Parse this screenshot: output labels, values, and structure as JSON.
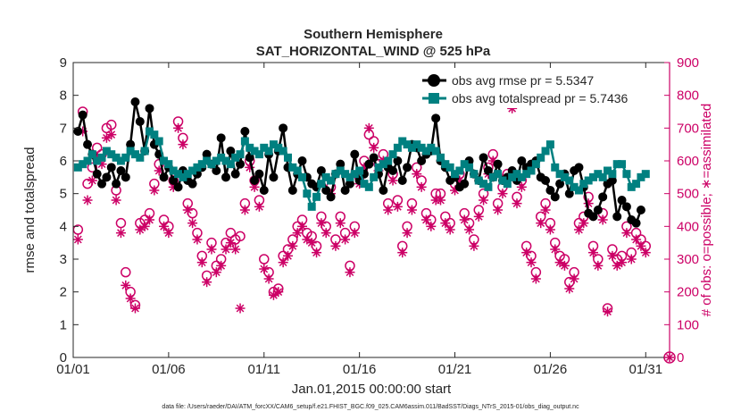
{
  "chart_data": {
    "type": "line",
    "title": "Southern Hemisphere",
    "subtitle": "SAT_HORIZONTAL_WIND @ 525 hPa",
    "xlabel": "Jan.01,2015 00:00:00 start",
    "ylabel": "rmse and totalspread",
    "ylabel_right": "# of obs: o=possible; ∗=assimilated",
    "x_tick_labels": [
      "01/01",
      "01/06",
      "01/11",
      "01/16",
      "01/21",
      "01/26",
      "01/31"
    ],
    "x_tick_days": [
      0,
      5,
      10,
      15,
      20,
      25,
      30
    ],
    "xlim_days": [
      0,
      31.25
    ],
    "ylim": [
      0,
      9
    ],
    "ylim_right": [
      0,
      900
    ],
    "y_ticks": [
      0,
      1,
      2,
      3,
      4,
      5,
      6,
      7,
      8,
      9
    ],
    "y_ticks_right": [
      0,
      100,
      200,
      300,
      400,
      500,
      600,
      700,
      800,
      900
    ],
    "grid": false,
    "legend_position": "top-right",
    "footer": "data file: /Users/raeder/DAI/ATM_forcXX/CAM6_setup/f.e21.FHIST_BGC.f09_025.CAM6assim.011/BadSST/Diags_NTrS_2015-01/obs_diag_output.nc",
    "colors": {
      "rmse": "#000000",
      "spread": "#008080",
      "obs": "#cc0066",
      "axes": "#262626"
    },
    "series": [
      {
        "name": "obs avg rmse pr = 5.5347",
        "axis": "left",
        "values": [
          6.9,
          7.4,
          6.5,
          6.2,
          5.6,
          5.3,
          5.5,
          5.8,
          5.3,
          5.7,
          5.5,
          6.5,
          7.8,
          7.2,
          6.3,
          7.6,
          6.5,
          6.2,
          5.5,
          5.8,
          5.4,
          5.2,
          5.7,
          5.4,
          5.3,
          5.6,
          5.8,
          6.2,
          5.9,
          5.7,
          6.7,
          5.5,
          6.3,
          5.6,
          5.9,
          6.9,
          6.1,
          5.4,
          5.6,
          5.1,
          6.2,
          5.5,
          6.3,
          7.0,
          5.8,
          5.1,
          5.6,
          6.0,
          5.5,
          5.3,
          5.2,
          5.7,
          5.1,
          4.9,
          5.6,
          5.9,
          5.1,
          5.3,
          6.2,
          5.4,
          5.6,
          5.9,
          6.1,
          5.6,
          5.1,
          5.8,
          5.7,
          6.0,
          5.4,
          5.8,
          6.5,
          6.4,
          6.0,
          6.2,
          6.3,
          7.3,
          6.0,
          5.8,
          5.4,
          5.5,
          5.2,
          5.3,
          6.0,
          5.6,
          5.4,
          6.1,
          5.7,
          5.5,
          5.9,
          5.4,
          5.5,
          5.7,
          5.4,
          6.0,
          5.8,
          5.9,
          6.0,
          5.5,
          5.4,
          5.1,
          4.9,
          5.3,
          5.6,
          5.0,
          5.7,
          5.8,
          5.2,
          4.4,
          4.3,
          4.5,
          4.9,
          5.3,
          5.4,
          4.3,
          4.8,
          4.6,
          4.2,
          4.1,
          4.5
        ],
        "marker": "filled-circle"
      },
      {
        "name": "obs avg totalspread pr = 5.7436",
        "axis": "left",
        "values": [
          5.8,
          5.9,
          6.0,
          6.2,
          6.0,
          6.1,
          6.3,
          6.2,
          6.1,
          6.0,
          6.1,
          6.3,
          6.2,
          6.1,
          6.3,
          6.9,
          6.8,
          6.6,
          6.0,
          5.9,
          5.7,
          5.6,
          5.5,
          5.6,
          5.7,
          5.8,
          5.9,
          6.0,
          5.9,
          6.0,
          6.1,
          6.0,
          5.9,
          6.1,
          6.2,
          6.6,
          6.4,
          6.3,
          6.2,
          6.4,
          6.3,
          6.5,
          6.4,
          6.3,
          6.1,
          5.8,
          5.7,
          5.5,
          5.0,
          4.6,
          4.9,
          5.3,
          5.5,
          5.4,
          5.6,
          5.7,
          5.6,
          5.5,
          5.6,
          5.7,
          5.3,
          5.2,
          5.5,
          5.8,
          5.9,
          6.0,
          6.2,
          6.4,
          6.6,
          6.5,
          6.4,
          6.5,
          6.4,
          6.3,
          6.4,
          6.3,
          6.1,
          5.9,
          5.8,
          5.6,
          5.7,
          5.9,
          5.8,
          5.6,
          5.4,
          5.3,
          5.2,
          5.5,
          5.6,
          5.4,
          5.3,
          5.5,
          5.6,
          5.5,
          5.6,
          5.7,
          5.9,
          6.1,
          6.3,
          6.5,
          5.8,
          5.6,
          5.5,
          5.4,
          5.2,
          5.1,
          5.3,
          5.4,
          5.5,
          5.6,
          5.5,
          5.7,
          5.6,
          5.9,
          5.9,
          5.6,
          5.2,
          5.3,
          5.5,
          5.6
        ],
        "marker": "filled-square"
      },
      {
        "name": "obs possible",
        "axis": "right",
        "values": [
          390,
          750,
          530,
          580,
          640,
          620,
          700,
          710,
          510,
          410,
          260,
          200,
          160,
          410,
          420,
          440,
          530,
          590,
          420,
          400,
          540,
          720,
          670,
          470,
          440,
          380,
          310,
          250,
          350,
          280,
          300,
          350,
          380,
          360,
          370,
          470,
          600,
          540,
          480,
          300,
          260,
          200,
          210,
          310,
          330,
          360,
          400,
          420,
          380,
          370,
          340,
          430,
          400,
          520,
          360,
          430,
          380,
          280,
          400,
          550,
          600,
          680,
          660,
          590,
          620,
          470,
          560,
          480,
          340,
          400,
          470,
          580,
          540,
          440,
          420,
          500,
          500,
          430,
          410,
          530,
          560,
          440,
          410,
          360,
          450,
          500,
          580,
          620,
          470,
          520,
          560,
          780,
          490,
          540,
          340,
          310,
          260,
          430,
          470,
          410,
          350,
          310,
          300,
          230,
          260,
          410,
          430,
          490,
          340,
          300,
          440,
          150,
          330,
          300,
          310,
          400,
          320,
          380,
          360,
          340
        ],
        "marker": "open-circle"
      },
      {
        "name": "obs assimilated",
        "axis": "right",
        "values": [
          360,
          690,
          480,
          540,
          610,
          590,
          670,
          680,
          480,
          380,
          220,
          180,
          150,
          390,
          400,
          420,
          510,
          570,
          400,
          380,
          520,
          700,
          650,
          450,
          410,
          360,
          290,
          230,
          330,
          260,
          280,
          330,
          350,
          330,
          150,
          450,
          580,
          520,
          460,
          270,
          240,
          190,
          200,
          290,
          310,
          340,
          380,
          400,
          360,
          350,
          320,
          410,
          380,
          500,
          340,
          410,
          360,
          260,
          380,
          530,
          580,
          700,
          640,
          570,
          600,
          450,
          540,
          460,
          320,
          380,
          450,
          560,
          520,
          420,
          400,
          480,
          480,
          410,
          390,
          510,
          540,
          420,
          390,
          340,
          430,
          480,
          560,
          600,
          450,
          500,
          540,
          760,
          470,
          520,
          320,
          290,
          240,
          410,
          450,
          390,
          330,
          290,
          280,
          210,
          240,
          390,
          410,
          470,
          320,
          280,
          420,
          140,
          310,
          280,
          290,
          380,
          300,
          360,
          340,
          320
        ],
        "marker": "asterisk"
      }
    ],
    "extra_point": {
      "x_day": 31.25,
      "y_right": 0,
      "marker": "circled-asterisk"
    }
  }
}
